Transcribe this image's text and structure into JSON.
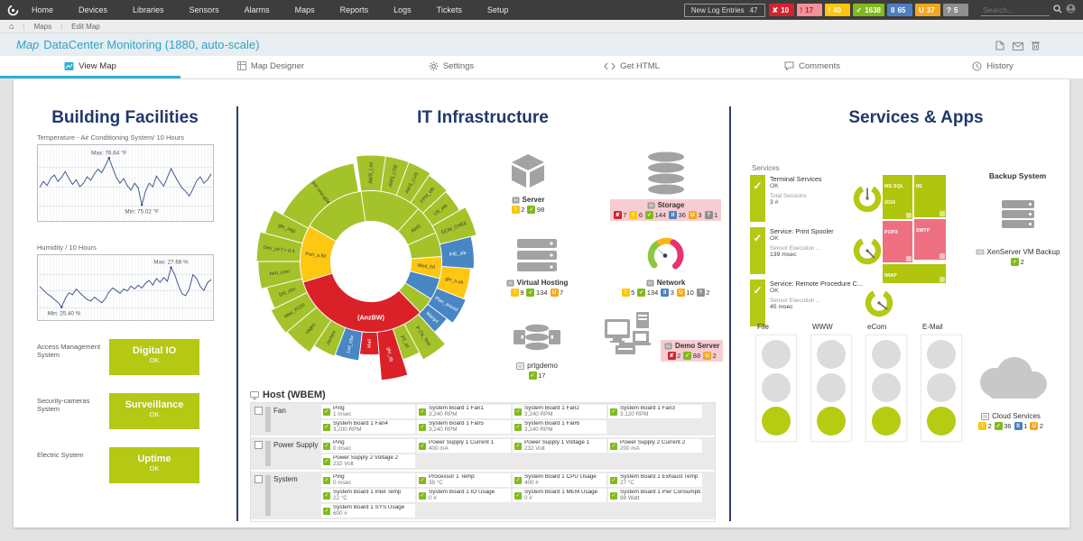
{
  "nav": {
    "items": [
      "Home",
      "Devices",
      "Libraries",
      "Sensors",
      "Alarms",
      "Maps",
      "Reports",
      "Logs",
      "Tickets",
      "Setup"
    ],
    "new_log_entries_label": "New Log Entries",
    "new_log_entries_count": "47",
    "status_badges": [
      {
        "state": "down",
        "count": "10"
      },
      {
        "state": "downack",
        "count": "17"
      },
      {
        "state": "warning",
        "count": "40"
      },
      {
        "state": "up",
        "count": "1638"
      },
      {
        "state": "paused",
        "count": "65"
      },
      {
        "state": "unusual",
        "count": "37"
      },
      {
        "state": "unknown",
        "count": "5"
      }
    ],
    "search_placeholder": "Search..."
  },
  "breadcrumb": {
    "home": "⌂",
    "items": [
      "Maps",
      "Edit Map"
    ]
  },
  "titlebar": {
    "kind": "Map",
    "title": "DataCenter Monitoring (1880, auto-scale)"
  },
  "tabs": [
    {
      "label": "View Map"
    },
    {
      "label": "Map Designer"
    },
    {
      "label": "Settings"
    },
    {
      "label": "Get HTML"
    },
    {
      "label": "Comments"
    },
    {
      "label": "History"
    }
  ],
  "facilities": {
    "heading": "Building Facilities",
    "charts": [
      {
        "title": "Temperature - Air Conditioning System/ 10 Hours",
        "max_label": "Max: 76.64 °F",
        "min_label": "Min: 75.02 °F",
        "values": [
          0.45,
          0.55,
          0.48,
          0.6,
          0.66,
          0.55,
          0.62,
          0.72,
          0.6,
          0.5,
          0.58,
          0.46,
          0.52,
          0.63,
          0.57,
          0.68,
          0.76,
          0.7,
          0.82,
          0.95,
          0.78,
          0.62,
          0.52,
          0.6,
          0.48,
          0.4,
          0.52,
          0.44,
          0.15,
          0.38,
          0.52,
          0.46,
          0.64,
          0.55,
          0.47,
          0.62,
          0.77,
          0.65,
          0.54,
          0.44,
          0.38,
          0.3,
          0.42,
          0.56,
          0.63,
          0.52,
          0.58,
          0.68
        ]
      },
      {
        "title": "Humidity / 10 Hours",
        "max_label": "Max: 27.68 %",
        "min_label": "Min: 25.40 %",
        "values": [
          0.55,
          0.48,
          0.4,
          0.35,
          0.28,
          0.22,
          0.12,
          0.3,
          0.42,
          0.38,
          0.5,
          0.42,
          0.35,
          0.28,
          0.25,
          0.33,
          0.27,
          0.21,
          0.3,
          0.44,
          0.52,
          0.47,
          0.41,
          0.5,
          0.46,
          0.56,
          0.5,
          0.58,
          0.52,
          0.62,
          0.68,
          0.58,
          0.72,
          0.64,
          0.74,
          0.66,
          0.95,
          0.8,
          0.58,
          0.4,
          0.36,
          0.5,
          0.8,
          0.72,
          0.55,
          0.47,
          0.63,
          0.7
        ]
      }
    ],
    "systems": [
      {
        "label": "Access Management System",
        "name": "Digital IO",
        "status": "OK"
      },
      {
        "label": "Security-cameras System",
        "name": "Surveillance",
        "status": "OK"
      },
      {
        "label": "Electric System",
        "name": "Uptime",
        "status": "OK"
      }
    ]
  },
  "infrastructure": {
    "heading": "IT Infrastructure",
    "sunburst": {
      "center_label": "(AnzBW)",
      "inner": [
        [
          352,
          42,
          "g",
          ""
        ],
        [
          42,
          66,
          "g",
          "AWS"
        ],
        [
          66,
          86,
          "g",
          ""
        ],
        [
          86,
          104,
          "y",
          "Med_ltd"
        ],
        [
          104,
          122,
          "b",
          ""
        ],
        [
          122,
          136,
          "g",
          ""
        ],
        [
          136,
          253,
          "r",
          ""
        ],
        [
          253,
          300,
          "y",
          "Port_a ltd"
        ],
        [
          300,
          352,
          "g",
          ""
        ]
      ],
      "outer": [
        [
          352,
          8,
          132,
          "g",
          "AWS_(.au"
        ],
        [
          8,
          21,
          132,
          "g",
          "AWS_(.DE"
        ],
        [
          21,
          34,
          132,
          "g",
          "AWS_(.US"
        ],
        [
          34,
          47,
          129,
          "g",
          "FFM_eth"
        ],
        [
          47,
          60,
          127,
          "g",
          "US_eth"
        ],
        [
          60,
          76,
          135,
          "g",
          "DCM_CHEE"
        ],
        [
          76,
          94,
          128,
          "b",
          "IHE_xfe"
        ],
        [
          94,
          112,
          124,
          "y",
          "gkr_o.uk"
        ],
        [
          112,
          127,
          127,
          "b",
          "Plan_anced"
        ],
        [
          127,
          138,
          118,
          "b",
          "Many4"
        ],
        [
          138,
          152,
          138,
          "g",
          "P (Ta_Test"
        ],
        [
          152,
          162,
          128,
          "g",
          "yS_all"
        ],
        [
          162,
          175,
          148,
          "r",
          "gkr_db"
        ],
        [
          175,
          187,
          116,
          "r",
          "Mail"
        ],
        [
          187,
          201,
          124,
          "b",
          "Lwl_rdw"
        ],
        [
          201,
          214,
          126,
          "g",
          "Jochen"
        ],
        [
          214,
          230,
          136,
          "g",
          "uagex"
        ],
        [
          230,
          244,
          138,
          "g",
          "Wan_P220"
        ],
        [
          244,
          256,
          133,
          "g",
          "(pi)_clm"
        ],
        [
          256,
          270,
          140,
          "g",
          "ben_com"
        ],
        [
          270,
          285,
          142,
          "g",
          "Dev_ce f > d 4"
        ],
        [
          285,
          298,
          136,
          "g",
          "gkr_reg)"
        ],
        [
          298,
          350,
          124,
          "g",
          "por-xxw-g04"
        ]
      ]
    },
    "devices": [
      {
        "name": "Server",
        "badges": [
          {
            "state": "warning",
            "count": "2"
          },
          {
            "state": "up",
            "count": "98"
          }
        ]
      },
      {
        "name": "Storage",
        "alert": true,
        "badges": [
          {
            "state": "down",
            "count": "7"
          },
          {
            "state": "warning",
            "count": "6"
          },
          {
            "state": "up",
            "count": "144"
          },
          {
            "state": "paused",
            "count": "36"
          },
          {
            "state": "unusual",
            "count": "3"
          },
          {
            "state": "unknown",
            "count": "1"
          }
        ]
      },
      {
        "name": "Virtual Hosting",
        "badges": [
          {
            "state": "warning",
            "count": "9"
          },
          {
            "state": "up",
            "count": "134"
          },
          {
            "state": "unusual",
            "count": "7"
          }
        ]
      },
      {
        "name": "Network",
        "badges": [
          {
            "state": "warning",
            "count": "5"
          },
          {
            "state": "up",
            "count": "134"
          },
          {
            "state": "paused",
            "count": "3"
          },
          {
            "state": "unusual",
            "count": "10"
          },
          {
            "state": "unknown",
            "count": "2"
          }
        ]
      },
      {
        "name": "prtgdemo",
        "badges": [
          {
            "state": "up",
            "count": "17"
          }
        ]
      },
      {
        "name": "Demo Server",
        "alert": true,
        "badges": [
          {
            "state": "down",
            "count": "2"
          },
          {
            "state": "up",
            "count": "88"
          },
          {
            "state": "unusual",
            "count": "2"
          }
        ]
      }
    ],
    "host": {
      "title": "Host (WBEM)",
      "groups": [
        {
          "name": "Fan",
          "sensors": [
            [
              "Ping",
              "1 msec"
            ],
            [
              "System Board 1 Fan1",
              "3,240 RPM"
            ],
            [
              "System Board 1 Fan2",
              "3,240 RPM"
            ],
            [
              "System Board 1 Fan3",
              "3,120 RPM"
            ],
            [
              "System Board 1 Fan4",
              "3,200 RPM"
            ],
            [
              "System Board 1 Fan5",
              "3,240 RPM"
            ],
            [
              "System Board 1 Fan6",
              "3,240 RPM"
            ]
          ]
        },
        {
          "name": "Power Supply",
          "sensors": [
            [
              "Ping",
              "0 msec"
            ],
            [
              "Power Supply 1 Current 1",
              "400 mA"
            ],
            [
              "Power Supply 1 Voltage 1",
              "232 Volt"
            ],
            [
              "Power Supply 2 Current 2",
              "200 mA"
            ],
            [
              "Power Supply 2 Voltage 2",
              "232 Volt"
            ]
          ]
        },
        {
          "name": "System",
          "sensors": [
            [
              "Ping",
              "0 msec"
            ],
            [
              "Processor 1 Temp",
              "38 °C"
            ],
            [
              "System Board 1 CPU Usage",
              "400 #"
            ],
            [
              "System Board 1 Exhaust Temp",
              "27 °C"
            ],
            [
              "System Board 1 Inlet Temp",
              "22 °C"
            ],
            [
              "System Board 1 IO Usage",
              "0 #"
            ],
            [
              "System Board 1 MEM Usage",
              "0 #"
            ],
            [
              "System Board 1 Pwr Consumption",
              "98 Watt"
            ],
            [
              "System Board 1 SYS Usage",
              "600 #"
            ]
          ]
        }
      ]
    }
  },
  "services": {
    "heading": "Services & Apps",
    "section_label": "Services",
    "items": [
      {
        "title": "Terminal Services",
        "status": "OK",
        "metric": "Total Sessions",
        "value": "3 #",
        "needle": 0
      },
      {
        "title": "Service: Print Spooler",
        "status": "OK",
        "metric": "Sensor Execution ...",
        "value": "139 msec",
        "needle": 135
      },
      {
        "title": "Service: Remote Procedure C...",
        "status": "OK",
        "metric": "Sensor Execution ...",
        "value": "45 msec",
        "needle": 128
      }
    ],
    "treemap": [
      {
        "label": "MS SQL 2016",
        "state": "ok"
      },
      {
        "label": "IIS",
        "state": "ok"
      },
      {
        "label": "POP3",
        "state": "down"
      },
      {
        "label": "SMTP",
        "state": "down"
      },
      {
        "label": "IMAP",
        "state": "ok"
      }
    ],
    "backup": {
      "title": "Backup System",
      "item": "XenServer VM Backup",
      "badges": [
        {
          "state": "up",
          "count": "2"
        }
      ]
    },
    "traffic_lights": {
      "labels": [
        "File",
        "WWW",
        "eCom",
        "E-Mail"
      ],
      "lights": [
        "off",
        "off",
        "on"
      ]
    },
    "cloud": {
      "label": "Cloud Services",
      "badges": [
        {
          "state": "warning",
          "count": "2"
        },
        {
          "state": "up",
          "count": "36"
        },
        {
          "state": "paused",
          "count": "1"
        },
        {
          "state": "unusual",
          "count": "2"
        }
      ]
    }
  },
  "colors": {
    "accent_cyan": "#2cb0d6",
    "heading_navy": "#20386b",
    "ok_green": "#b5c813",
    "badge_green": "#80ba1c",
    "down_red": "#d2242f",
    "warning_yellow": "#fcc60b",
    "paused_blue": "#4d80c0",
    "unusual_orange": "#f4a71d",
    "alert_pink": "#f7cdd2",
    "treemap_pink": "#ee7080"
  }
}
